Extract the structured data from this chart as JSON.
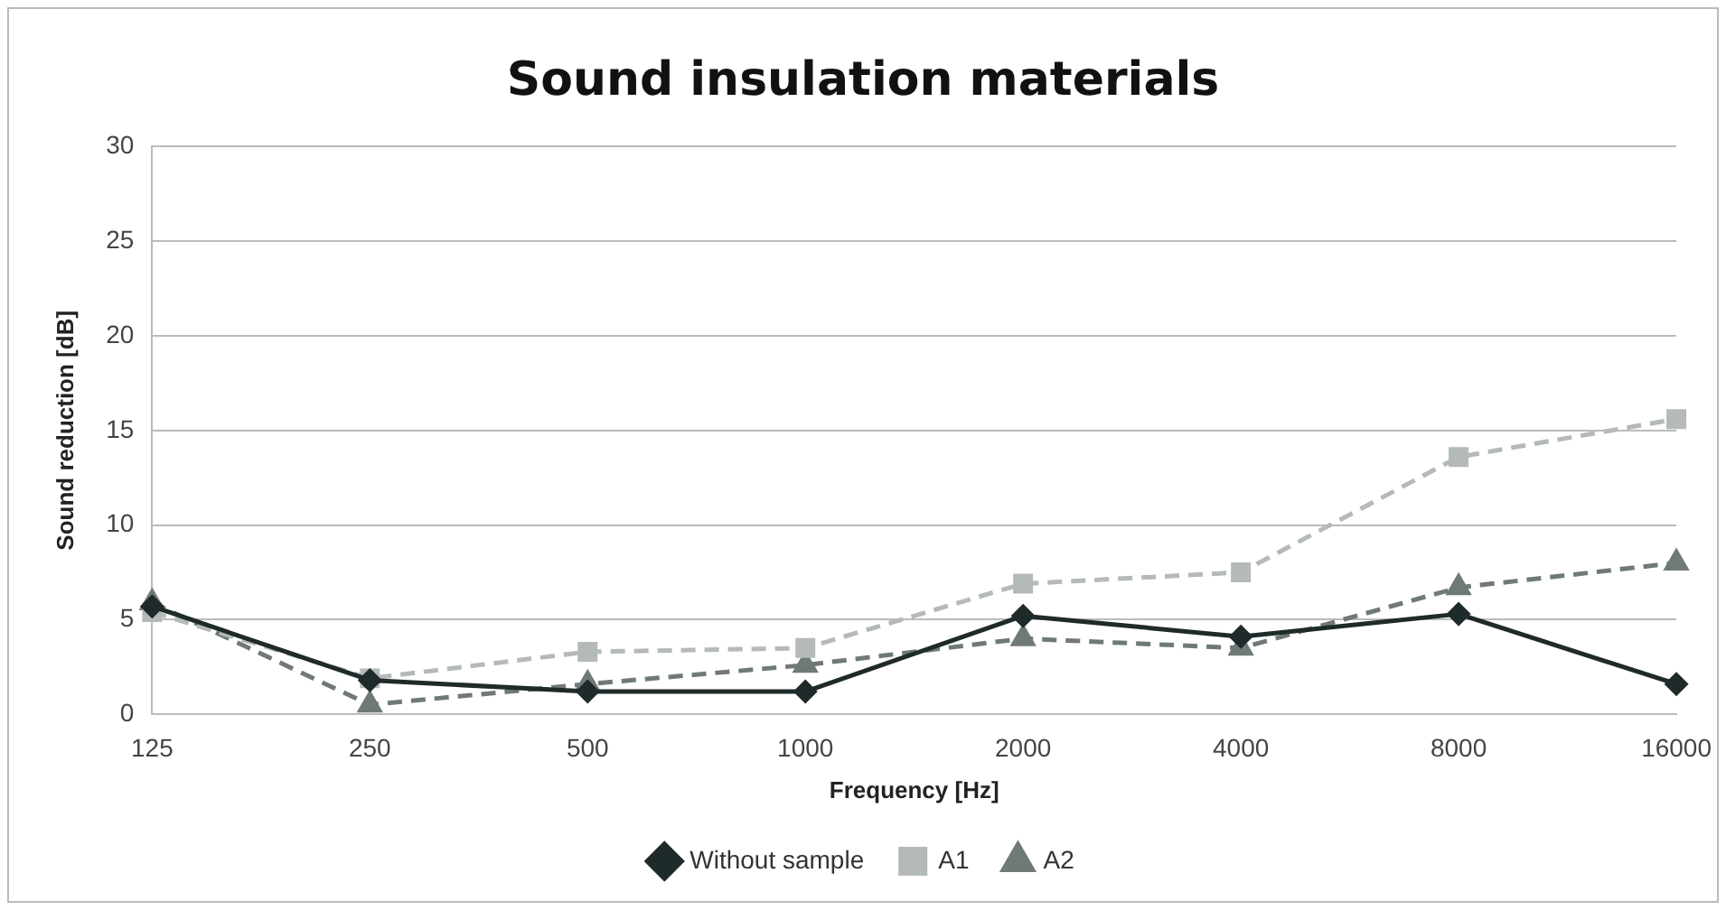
{
  "chart_data": {
    "type": "line",
    "title": "Sound insulation materials",
    "xlabel": "Frequency [Hz]",
    "ylabel": "Sound reduction [dB]",
    "categories": [
      "125",
      "250",
      "500",
      "1000",
      "2000",
      "4000",
      "8000",
      "16000"
    ],
    "series": [
      {
        "name": "Without sample",
        "color": "#1f2a2a",
        "marker": "diamond",
        "line_style": "solid",
        "values": [
          5.7,
          1.8,
          1.2,
          1.2,
          5.2,
          4.1,
          5.3,
          1.6
        ]
      },
      {
        "name": "A1",
        "color": "#b4bab8",
        "marker": "square",
        "line_style": "dashed",
        "values": [
          5.4,
          1.9,
          3.3,
          3.5,
          6.9,
          7.5,
          13.6,
          15.6
        ]
      },
      {
        "name": "A2",
        "color": "#6f7a78",
        "marker": "triangle",
        "line_style": "dashed",
        "values": [
          5.9,
          0.5,
          1.6,
          2.6,
          4.0,
          3.5,
          6.7,
          8.0
        ]
      }
    ],
    "ylim": [
      0,
      30
    ],
    "yticks": [
      0,
      5,
      10,
      15,
      20,
      25,
      30
    ],
    "grid": "y",
    "legend": "bottom"
  }
}
